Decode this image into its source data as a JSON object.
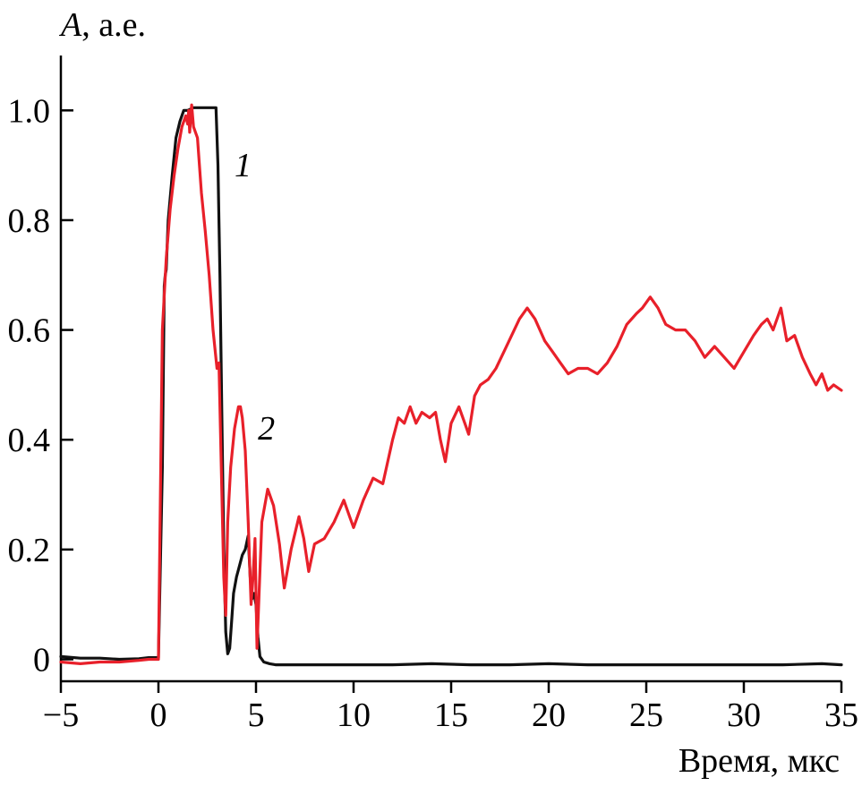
{
  "chart_data": {
    "type": "line",
    "ylabel_symbol": "A",
    "ylabel_unit": ", а.е.",
    "xlabel": "Время, мкс",
    "xlim": [
      -5,
      35
    ],
    "ylim": [
      -0.04,
      1.1
    ],
    "xticks": [
      -5,
      0,
      5,
      10,
      15,
      20,
      25,
      30,
      35
    ],
    "xtick_labels": [
      "−5",
      "0",
      "5",
      "10",
      "15",
      "20",
      "25",
      "30",
      "35"
    ],
    "yticks": [
      0,
      0.2,
      0.4,
      0.6,
      0.8,
      1.0
    ],
    "ytick_labels": [
      "0",
      "0.2",
      "0.4",
      "0.6",
      "0.8",
      "1.0"
    ],
    "grid": false,
    "series": [
      {
        "name": "1",
        "color": "#111111",
        "x": [
          -5,
          -4,
          -3,
          -2,
          -1,
          -0.5,
          0,
          0.2,
          0.3,
          0.35,
          0.4,
          0.5,
          0.7,
          0.9,
          1.1,
          1.3,
          1.5,
          1.8,
          2.1,
          2.5,
          2.8,
          2.95,
          3.05,
          3.15,
          3.25,
          3.35,
          3.45,
          3.55,
          3.65,
          3.75,
          3.85,
          4.0,
          4.15,
          4.3,
          4.45,
          4.6,
          4.7,
          4.8,
          4.9,
          5.0,
          5.1,
          5.2,
          5.4,
          5.7,
          6,
          7,
          8,
          9,
          10,
          12,
          14,
          16,
          18,
          20,
          22,
          24,
          26,
          28,
          30,
          32,
          34,
          35
        ],
        "values": [
          0.005,
          0.002,
          0.002,
          0.0,
          0.001,
          0.003,
          0.003,
          0.35,
          0.68,
          0.7,
          0.71,
          0.8,
          0.88,
          0.95,
          0.98,
          1.0,
          1.0,
          1.005,
          1.005,
          1.005,
          1.005,
          1.005,
          0.9,
          0.7,
          0.45,
          0.2,
          0.05,
          0.01,
          0.02,
          0.07,
          0.12,
          0.15,
          0.17,
          0.19,
          0.2,
          0.225,
          0.15,
          0.11,
          0.12,
          0.1,
          0.04,
          0.005,
          -0.005,
          -0.008,
          -0.01,
          -0.01,
          -0.01,
          -0.01,
          -0.01,
          -0.01,
          -0.008,
          -0.01,
          -0.01,
          -0.008,
          -0.01,
          -0.01,
          -0.01,
          -0.01,
          -0.01,
          -0.01,
          -0.008,
          -0.01
        ]
      },
      {
        "name": "2",
        "color": "#e8202a",
        "x": [
          -5,
          -4,
          -3,
          -2,
          -1,
          -0.5,
          0,
          0.1,
          0.2,
          0.4,
          0.6,
          0.8,
          1.0,
          1.2,
          1.4,
          1.5,
          1.55,
          1.6,
          1.7,
          1.8,
          2.0,
          2.2,
          2.4,
          2.6,
          2.8,
          3.0,
          3.1,
          3.2,
          3.35,
          3.45,
          3.55,
          3.7,
          3.9,
          4.1,
          4.2,
          4.3,
          4.45,
          4.6,
          4.75,
          4.85,
          4.95,
          5.05,
          5.3,
          5.6,
          5.9,
          6.2,
          6.45,
          6.8,
          7.2,
          7.45,
          7.7,
          8.0,
          8.5,
          9.0,
          9.5,
          9.8,
          10.0,
          10.5,
          11.0,
          11.5,
          12.0,
          12.3,
          12.6,
          12.9,
          13.2,
          13.5,
          13.9,
          14.2,
          14.45,
          14.7,
          15.0,
          15.4,
          15.7,
          15.9,
          16.2,
          16.5,
          16.9,
          17.3,
          17.7,
          18.1,
          18.5,
          18.9,
          19.3,
          19.8,
          20.2,
          20.6,
          21.0,
          21.5,
          22.0,
          22.5,
          23.0,
          23.5,
          24.0,
          24.5,
          24.8,
          25.2,
          25.6,
          26.0,
          26.5,
          27.0,
          27.5,
          28.0,
          28.5,
          29.0,
          29.5,
          30.0,
          30.5,
          30.9,
          31.2,
          31.5,
          31.9,
          32.2,
          32.6,
          33.0,
          33.4,
          33.7,
          34.0,
          34.3,
          34.6,
          35.0
        ],
        "values": [
          -0.005,
          -0.008,
          -0.005,
          -0.005,
          -0.002,
          0.0,
          0.0,
          0.3,
          0.6,
          0.73,
          0.82,
          0.88,
          0.93,
          0.97,
          0.99,
          0.975,
          1.0,
          0.96,
          1.01,
          0.97,
          0.95,
          0.85,
          0.78,
          0.7,
          0.6,
          0.53,
          0.54,
          0.38,
          0.15,
          0.08,
          0.25,
          0.35,
          0.42,
          0.46,
          0.46,
          0.44,
          0.38,
          0.25,
          0.1,
          0.15,
          0.22,
          0.02,
          0.25,
          0.31,
          0.28,
          0.21,
          0.13,
          0.2,
          0.26,
          0.22,
          0.16,
          0.21,
          0.22,
          0.25,
          0.29,
          0.26,
          0.24,
          0.29,
          0.33,
          0.32,
          0.4,
          0.44,
          0.43,
          0.46,
          0.43,
          0.45,
          0.44,
          0.45,
          0.4,
          0.36,
          0.43,
          0.46,
          0.43,
          0.41,
          0.48,
          0.5,
          0.51,
          0.53,
          0.56,
          0.59,
          0.62,
          0.64,
          0.62,
          0.58,
          0.56,
          0.54,
          0.52,
          0.53,
          0.53,
          0.52,
          0.54,
          0.57,
          0.61,
          0.63,
          0.64,
          0.66,
          0.64,
          0.61,
          0.6,
          0.6,
          0.58,
          0.55,
          0.57,
          0.55,
          0.53,
          0.56,
          0.59,
          0.61,
          0.62,
          0.6,
          0.64,
          0.58,
          0.59,
          0.55,
          0.52,
          0.5,
          0.52,
          0.49,
          0.5,
          0.49
        ]
      }
    ],
    "annotations": [
      {
        "text": "1",
        "x": 3.9,
        "y": 0.88
      },
      {
        "text": "2",
        "x": 5.1,
        "y": 0.4
      }
    ]
  }
}
